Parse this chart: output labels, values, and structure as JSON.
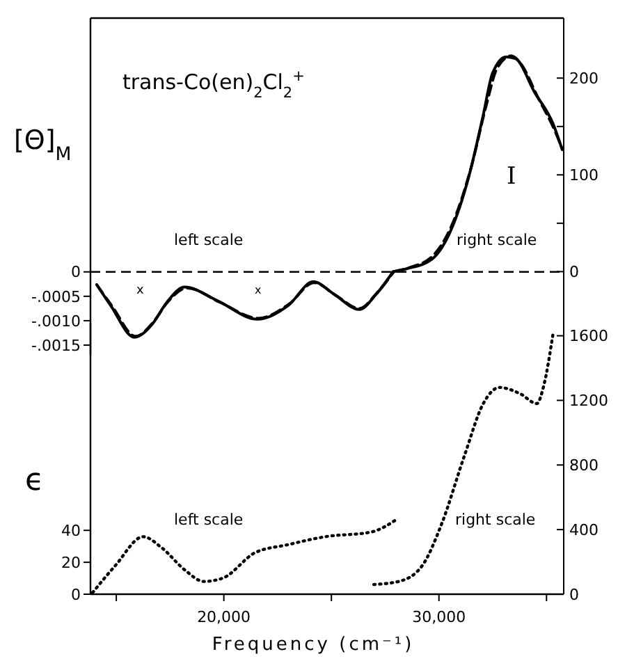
{
  "chart_data": [
    {
      "type": "line",
      "ylabel": "[Θ]$_{M}$",
      "xlim": [
        13800,
        35800
      ],
      "ylim": [
        -0.0017,
        0.0052
      ],
      "yticks": [
        0,
        {
          "value": -0.0005,
          "label": "-.0005"
        },
        {
          "value": -0.001,
          "label": "-.0010"
        },
        {
          "value": -0.0015,
          "label": "-.0015"
        }
      ],
      "y2lim": [
        -86,
        262
      ],
      "y2ticks": [
        0,
        {
          "value": 50,
          "label": null
        },
        100,
        {
          "value": 150,
          "label": null
        },
        200
      ],
      "annotations": [
        "trans-Co(en)$_{2}$Cl$_{2}$$^{+}$",
        "left scale",
        "right scale",
        "I",
        "x",
        "x"
      ],
      "ref_lines": [
        {
          "axis": "y",
          "value": 0,
          "line_style": "dashed",
          "color": "#000000"
        }
      ],
      "series": [
        {
          "color": "#000000",
          "line_style": "solid",
          "x": [
            14090,
            14740,
            15840,
            16690,
            17340,
            18180,
            19740,
            21560,
            22990,
            24160,
            25130,
            26300,
            27080,
            27860
          ],
          "values": [
            -0.00026,
            -0.00069,
            -0.00134,
            -0.00106,
            -0.00063,
            -0.00031,
            -0.0006,
            -0.00097,
            -0.00069,
            -0.0002,
            -0.00046,
            -0.00077,
            -0.00046,
            0
          ]
        },
        {
          "color": "#000000",
          "line_style": "solid",
          "axis": "y2",
          "x": [
            27860,
            28500,
            29680,
            30540,
            31410,
            32060,
            32490,
            33120,
            33570,
            34430,
            35300,
            35730
          ],
          "values": [
            0,
            3,
            13,
            42,
            100,
            162,
            205,
            222,
            220,
            186,
            153,
            126
          ]
        },
        {
          "color": "#000000",
          "line_style": "dashed",
          "x": [
            14100,
            14800,
            15900,
            16700,
            17400,
            18300,
            19800,
            21600,
            23000,
            24200,
            25200,
            26300,
            27100,
            27900
          ],
          "values": [
            -0.00027,
            -0.0007,
            -0.00132,
            -0.00104,
            -0.00061,
            -0.00033,
            -0.00062,
            -0.00095,
            -0.00067,
            -0.00022,
            -0.00048,
            -0.00075,
            -0.00044,
            0
          ]
        },
        {
          "color": "#000000",
          "line_style": "dashed",
          "axis": "y2",
          "x": [
            27900,
            28600,
            29700,
            30600,
            31500,
            32200,
            32700,
            33360,
            33800,
            34600,
            35400,
            35710
          ],
          "values": [
            0,
            4,
            16,
            48,
            108,
            172,
            210,
            223,
            215,
            180,
            145,
            128
          ]
        }
      ]
    },
    {
      "type": "line",
      "ylabel": "ϵ",
      "xlabel": "Frequency  (cm⁻¹)",
      "xlim": [
        13800,
        35800
      ],
      "xticks": [
        {
          "value": 15000,
          "label": null
        },
        {
          "value": 20000,
          "label": "20,000"
        },
        {
          "value": 25000,
          "label": null
        },
        {
          "value": 30000,
          "label": "30,000"
        },
        {
          "value": 35000,
          "label": null
        }
      ],
      "ylim": [
        0,
        170
      ],
      "yticks": [
        0,
        20,
        40
      ],
      "y2lim": [
        0,
        1680
      ],
      "y2ticks": [
        0,
        400,
        800,
        1200,
        1600
      ],
      "annotations": [
        "left scale",
        "right scale"
      ],
      "series": [
        {
          "color": "#000000",
          "line_style": "dotted",
          "x": [
            13900,
            14960,
            16250,
            17120,
            18200,
            19070,
            19940,
            21450,
            22970,
            24700,
            26860,
            28050
          ],
          "values": [
            1,
            18,
            36,
            29,
            15,
            8,
            10,
            26,
            31,
            36,
            39,
            47
          ]
        },
        {
          "color": "#000000",
          "line_style": "dotted",
          "axis": "y2",
          "x": [
            26970,
            28160,
            29240,
            30110,
            31190,
            32060,
            32810,
            33790,
            34550,
            34870,
            35300
          ],
          "values": [
            60,
            80,
            180,
            430,
            860,
            1180,
            1280,
            1240,
            1180,
            1290,
            1610
          ]
        }
      ]
    }
  ]
}
